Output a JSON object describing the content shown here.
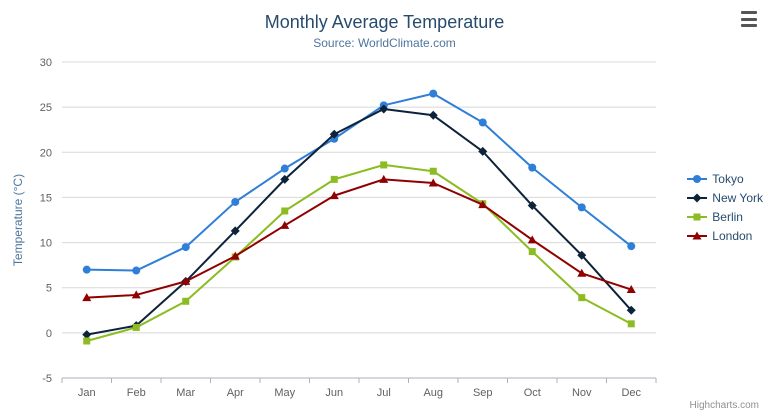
{
  "header": {
    "title": "Monthly Average Temperature",
    "subtitle": "Source: WorldClimate.com"
  },
  "credits": "Highcharts.com",
  "colors": {
    "title": "#274b6d",
    "subtitle": "#4d759e",
    "gridline": "#d8d8d8",
    "axis_line": "#aab2bb",
    "axis_label": "#606060",
    "legend_text": "#274b6d"
  },
  "chart_data": {
    "type": "line",
    "title": "Monthly Average Temperature",
    "subtitle": "Source: WorldClimate.com",
    "categories": [
      "Jan",
      "Feb",
      "Mar",
      "Apr",
      "May",
      "Jun",
      "Jul",
      "Aug",
      "Sep",
      "Oct",
      "Nov",
      "Dec"
    ],
    "ylabel": "Temperature (°C)",
    "ylim": [
      -5,
      30
    ],
    "ytick_interval": 5,
    "grid": true,
    "legend_position": "right",
    "series": [
      {
        "name": "Tokyo",
        "color": "#2f7ed8",
        "marker": "circle",
        "values": [
          7.0,
          6.9,
          9.5,
          14.5,
          18.2,
          21.5,
          25.2,
          26.5,
          23.3,
          18.3,
          13.9,
          9.6
        ]
      },
      {
        "name": "New York",
        "color": "#0d233a",
        "marker": "diamond",
        "values": [
          -0.2,
          0.8,
          5.7,
          11.3,
          17.0,
          22.0,
          24.8,
          24.1,
          20.1,
          14.1,
          8.6,
          2.5
        ]
      },
      {
        "name": "Berlin",
        "color": "#8bbc21",
        "marker": "square",
        "values": [
          -0.9,
          0.6,
          3.5,
          8.4,
          13.5,
          17.0,
          18.6,
          17.9,
          14.3,
          9.0,
          3.9,
          1.0
        ]
      },
      {
        "name": "London",
        "color": "#910000",
        "marker": "triangle",
        "values": [
          3.9,
          4.2,
          5.7,
          8.5,
          11.9,
          15.2,
          17.0,
          16.6,
          14.2,
          10.3,
          6.6,
          4.8
        ]
      }
    ]
  }
}
